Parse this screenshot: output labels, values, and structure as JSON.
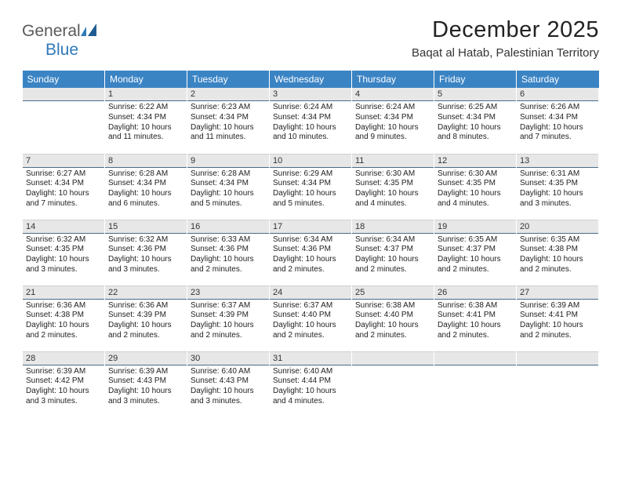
{
  "brand": {
    "word1": "General",
    "word2": "Blue"
  },
  "title": "December 2025",
  "location": "Baqat al Hatab, Palestinian Territory",
  "colors": {
    "header_bg": "#3b84c4",
    "header_text": "#ffffff",
    "daynum_bg": "#e7e7e7",
    "daynum_border": "#4a6b8a",
    "text": "#222222",
    "brand_gray": "#5a5a5a",
    "brand_blue": "#2f79b9"
  },
  "weekdays": [
    "Sunday",
    "Monday",
    "Tuesday",
    "Wednesday",
    "Thursday",
    "Friday",
    "Saturday"
  ],
  "weeks": [
    [
      {
        "n": "",
        "sr": "",
        "ss": "",
        "dl": ""
      },
      {
        "n": "1",
        "sr": "Sunrise: 6:22 AM",
        "ss": "Sunset: 4:34 PM",
        "dl": "Daylight: 10 hours and 11 minutes."
      },
      {
        "n": "2",
        "sr": "Sunrise: 6:23 AM",
        "ss": "Sunset: 4:34 PM",
        "dl": "Daylight: 10 hours and 11 minutes."
      },
      {
        "n": "3",
        "sr": "Sunrise: 6:24 AM",
        "ss": "Sunset: 4:34 PM",
        "dl": "Daylight: 10 hours and 10 minutes."
      },
      {
        "n": "4",
        "sr": "Sunrise: 6:24 AM",
        "ss": "Sunset: 4:34 PM",
        "dl": "Daylight: 10 hours and 9 minutes."
      },
      {
        "n": "5",
        "sr": "Sunrise: 6:25 AM",
        "ss": "Sunset: 4:34 PM",
        "dl": "Daylight: 10 hours and 8 minutes."
      },
      {
        "n": "6",
        "sr": "Sunrise: 6:26 AM",
        "ss": "Sunset: 4:34 PM",
        "dl": "Daylight: 10 hours and 7 minutes."
      }
    ],
    [
      {
        "n": "7",
        "sr": "Sunrise: 6:27 AM",
        "ss": "Sunset: 4:34 PM",
        "dl": "Daylight: 10 hours and 7 minutes."
      },
      {
        "n": "8",
        "sr": "Sunrise: 6:28 AM",
        "ss": "Sunset: 4:34 PM",
        "dl": "Daylight: 10 hours and 6 minutes."
      },
      {
        "n": "9",
        "sr": "Sunrise: 6:28 AM",
        "ss": "Sunset: 4:34 PM",
        "dl": "Daylight: 10 hours and 5 minutes."
      },
      {
        "n": "10",
        "sr": "Sunrise: 6:29 AM",
        "ss": "Sunset: 4:34 PM",
        "dl": "Daylight: 10 hours and 5 minutes."
      },
      {
        "n": "11",
        "sr": "Sunrise: 6:30 AM",
        "ss": "Sunset: 4:35 PM",
        "dl": "Daylight: 10 hours and 4 minutes."
      },
      {
        "n": "12",
        "sr": "Sunrise: 6:30 AM",
        "ss": "Sunset: 4:35 PM",
        "dl": "Daylight: 10 hours and 4 minutes."
      },
      {
        "n": "13",
        "sr": "Sunrise: 6:31 AM",
        "ss": "Sunset: 4:35 PM",
        "dl": "Daylight: 10 hours and 3 minutes."
      }
    ],
    [
      {
        "n": "14",
        "sr": "Sunrise: 6:32 AM",
        "ss": "Sunset: 4:35 PM",
        "dl": "Daylight: 10 hours and 3 minutes."
      },
      {
        "n": "15",
        "sr": "Sunrise: 6:32 AM",
        "ss": "Sunset: 4:36 PM",
        "dl": "Daylight: 10 hours and 3 minutes."
      },
      {
        "n": "16",
        "sr": "Sunrise: 6:33 AM",
        "ss": "Sunset: 4:36 PM",
        "dl": "Daylight: 10 hours and 2 minutes."
      },
      {
        "n": "17",
        "sr": "Sunrise: 6:34 AM",
        "ss": "Sunset: 4:36 PM",
        "dl": "Daylight: 10 hours and 2 minutes."
      },
      {
        "n": "18",
        "sr": "Sunrise: 6:34 AM",
        "ss": "Sunset: 4:37 PM",
        "dl": "Daylight: 10 hours and 2 minutes."
      },
      {
        "n": "19",
        "sr": "Sunrise: 6:35 AM",
        "ss": "Sunset: 4:37 PM",
        "dl": "Daylight: 10 hours and 2 minutes."
      },
      {
        "n": "20",
        "sr": "Sunrise: 6:35 AM",
        "ss": "Sunset: 4:38 PM",
        "dl": "Daylight: 10 hours and 2 minutes."
      }
    ],
    [
      {
        "n": "21",
        "sr": "Sunrise: 6:36 AM",
        "ss": "Sunset: 4:38 PM",
        "dl": "Daylight: 10 hours and 2 minutes."
      },
      {
        "n": "22",
        "sr": "Sunrise: 6:36 AM",
        "ss": "Sunset: 4:39 PM",
        "dl": "Daylight: 10 hours and 2 minutes."
      },
      {
        "n": "23",
        "sr": "Sunrise: 6:37 AM",
        "ss": "Sunset: 4:39 PM",
        "dl": "Daylight: 10 hours and 2 minutes."
      },
      {
        "n": "24",
        "sr": "Sunrise: 6:37 AM",
        "ss": "Sunset: 4:40 PM",
        "dl": "Daylight: 10 hours and 2 minutes."
      },
      {
        "n": "25",
        "sr": "Sunrise: 6:38 AM",
        "ss": "Sunset: 4:40 PM",
        "dl": "Daylight: 10 hours and 2 minutes."
      },
      {
        "n": "26",
        "sr": "Sunrise: 6:38 AM",
        "ss": "Sunset: 4:41 PM",
        "dl": "Daylight: 10 hours and 2 minutes."
      },
      {
        "n": "27",
        "sr": "Sunrise: 6:39 AM",
        "ss": "Sunset: 4:41 PM",
        "dl": "Daylight: 10 hours and 2 minutes."
      }
    ],
    [
      {
        "n": "28",
        "sr": "Sunrise: 6:39 AM",
        "ss": "Sunset: 4:42 PM",
        "dl": "Daylight: 10 hours and 3 minutes."
      },
      {
        "n": "29",
        "sr": "Sunrise: 6:39 AM",
        "ss": "Sunset: 4:43 PM",
        "dl": "Daylight: 10 hours and 3 minutes."
      },
      {
        "n": "30",
        "sr": "Sunrise: 6:40 AM",
        "ss": "Sunset: 4:43 PM",
        "dl": "Daylight: 10 hours and 3 minutes."
      },
      {
        "n": "31",
        "sr": "Sunrise: 6:40 AM",
        "ss": "Sunset: 4:44 PM",
        "dl": "Daylight: 10 hours and 4 minutes."
      },
      {
        "n": "",
        "sr": "",
        "ss": "",
        "dl": ""
      },
      {
        "n": "",
        "sr": "",
        "ss": "",
        "dl": ""
      },
      {
        "n": "",
        "sr": "",
        "ss": "",
        "dl": ""
      }
    ]
  ]
}
